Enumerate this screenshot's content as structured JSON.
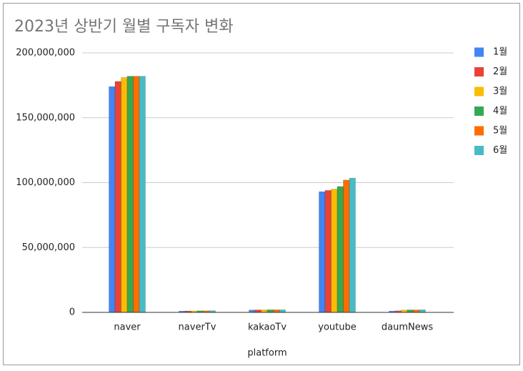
{
  "chart_data": {
    "type": "bar",
    "title": "2023년 상반기 월별 구독자 변화",
    "x_label": "platform",
    "categories": [
      "naver",
      "naverTv",
      "kakaoTv",
      "youtube",
      "daumNews"
    ],
    "series": [
      {
        "name": "1월",
        "color": "#4285f4",
        "values": [
          174000000,
          1000000,
          1800000,
          93000000,
          1000000
        ]
      },
      {
        "name": "2월",
        "color": "#ea4335",
        "values": [
          178000000,
          1100000,
          1900000,
          94000000,
          1200000
        ]
      },
      {
        "name": "3월",
        "color": "#fbbc04",
        "values": [
          181000000,
          1100000,
          1900000,
          95000000,
          1800000
        ]
      },
      {
        "name": "4월",
        "color": "#34a853",
        "values": [
          182000000,
          1200000,
          2000000,
          97000000,
          1900000
        ]
      },
      {
        "name": "5월",
        "color": "#ff6d01",
        "values": [
          182000000,
          1200000,
          2000000,
          102000000,
          1900000
        ]
      },
      {
        "name": "6월",
        "color": "#46bdc6",
        "values": [
          182000000,
          1300000,
          2000000,
          103500000,
          2000000
        ]
      }
    ],
    "ylim": [
      0,
      200000000
    ],
    "yticks": [
      0,
      {
        "value": 50000000,
        "label": "50,000,000"
      },
      {
        "value": 100000000,
        "label": "100,000,000"
      },
      {
        "value": 150000000,
        "label": "150,000,000"
      },
      {
        "value": 200000000,
        "label": "200,000,000"
      }
    ],
    "grid": true,
    "legend": "right"
  }
}
